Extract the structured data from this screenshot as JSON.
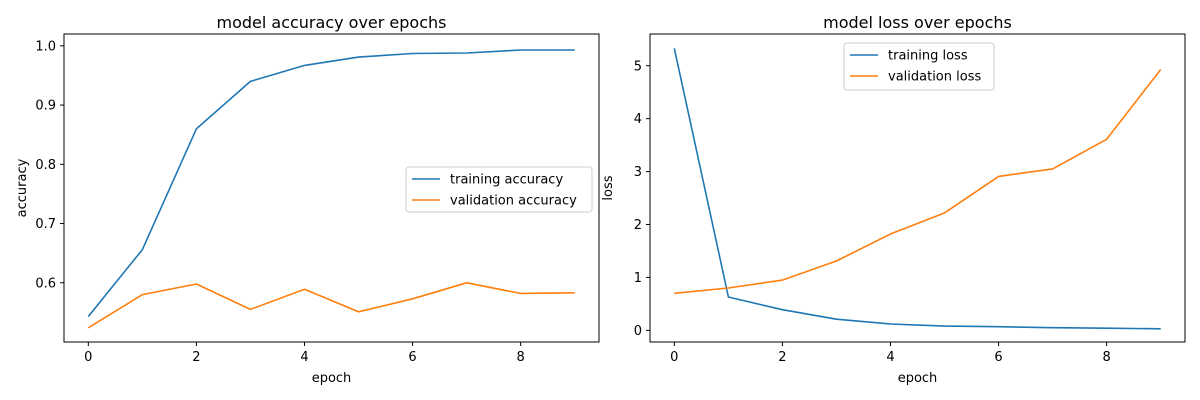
{
  "colors": {
    "training": "#1f77b4",
    "validation": "#ff7f0e"
  },
  "chart_data": [
    {
      "type": "line",
      "title": "model accuracy over epochs",
      "xlabel": "epoch",
      "ylabel": "accuracy",
      "xlim": [
        -0.45,
        9.45
      ],
      "ylim": [
        0.5,
        1.02
      ],
      "xticks": [
        0,
        2,
        4,
        6,
        8
      ],
      "yticks": [
        0.6,
        0.7,
        0.8,
        0.9,
        1.0
      ],
      "ytick_labels": [
        "0.6",
        "0.7",
        "0.8",
        "0.9",
        "1.0"
      ],
      "legend": "center-right",
      "x": [
        0,
        1,
        2,
        3,
        4,
        5,
        6,
        7,
        8,
        9
      ],
      "series": [
        {
          "name": "training accuracy",
          "color": "#1f77b4",
          "values": [
            0.543,
            0.656,
            0.86,
            0.94,
            0.967,
            0.981,
            0.987,
            0.988,
            0.993,
            0.993
          ]
        },
        {
          "name": "validation accuracy",
          "color": "#ff7f0e",
          "values": [
            0.524,
            0.58,
            0.598,
            0.555,
            0.589,
            0.551,
            0.573,
            0.6,
            0.582,
            0.583
          ]
        }
      ]
    },
    {
      "type": "line",
      "title": "model loss over epochs",
      "xlabel": "epoch",
      "ylabel": "loss",
      "xlim": [
        -0.45,
        9.45
      ],
      "ylim": [
        -0.22,
        5.6
      ],
      "xticks": [
        0,
        2,
        4,
        6,
        8
      ],
      "yticks": [
        0,
        1,
        2,
        3,
        4,
        5
      ],
      "ytick_labels": [
        "0",
        "1",
        "2",
        "3",
        "4",
        "5"
      ],
      "legend": "upper-center",
      "x": [
        0,
        1,
        2,
        3,
        4,
        5,
        6,
        7,
        8,
        9
      ],
      "series": [
        {
          "name": "training loss",
          "color": "#1f77b4",
          "values": [
            5.33,
            0.63,
            0.39,
            0.21,
            0.12,
            0.08,
            0.07,
            0.05,
            0.04,
            0.03
          ]
        },
        {
          "name": "validation loss",
          "color": "#ff7f0e",
          "values": [
            0.7,
            0.8,
            0.95,
            1.31,
            1.82,
            2.22,
            2.91,
            3.05,
            3.61,
            4.93
          ]
        }
      ]
    }
  ]
}
